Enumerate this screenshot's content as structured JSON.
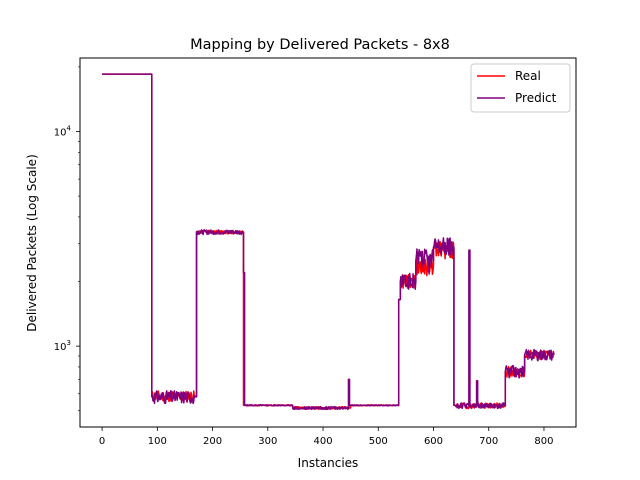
{
  "chart_data": {
    "type": "line",
    "title": "Mapping by Delivered Packets - 8x8",
    "xlabel": "Instancies",
    "ylabel": "Delivered Packets (Log Scale)",
    "yscale": "log",
    "xlim": [
      -40,
      858
    ],
    "ylim": [
      420,
      22000
    ],
    "x_ticks": [
      0,
      100,
      200,
      300,
      400,
      500,
      600,
      700,
      800
    ],
    "y_major_ticks": [
      {
        "value": 1000,
        "base": "10",
        "exp": "3"
      },
      {
        "value": 10000,
        "base": "10",
        "exp": "4"
      }
    ],
    "grid": false,
    "legend_position": "top-right",
    "series": [
      {
        "name": "Real",
        "color": "#ff0000",
        "segments": [
          {
            "x0": 0,
            "x1": 87,
            "level": 18500,
            "noise": 0,
            "seed": 1
          },
          {
            "x0": 87,
            "x1": 90,
            "level": 18500,
            "noise": 0,
            "seed": 1
          },
          {
            "x0": 90,
            "x1": 168,
            "level": 585,
            "noise": 0.06,
            "seed": 11
          },
          {
            "x0": 168,
            "x1": 171,
            "level": 585,
            "noise": 0,
            "seed": 1
          },
          {
            "x0": 171,
            "x1": 256,
            "level": 3400,
            "noise": 0.02,
            "seed": 12
          },
          {
            "x0": 256,
            "x1": 258,
            "level": 530,
            "noise": 0,
            "seed": 1
          },
          {
            "x0": 258,
            "x1": 345,
            "level": 530,
            "noise": 0.006,
            "seed": 13
          },
          {
            "x0": 345,
            "x1": 450,
            "level": 515,
            "noise": 0.015,
            "seed": 14
          },
          {
            "x0": 450,
            "x1": 537,
            "level": 530,
            "noise": 0.005,
            "seed": 15
          },
          {
            "x0": 537,
            "x1": 540,
            "level": 1650,
            "noise": 0,
            "seed": 1
          },
          {
            "x0": 540,
            "x1": 568,
            "level": 2000,
            "noise": 0.08,
            "seed": 16
          },
          {
            "x0": 568,
            "x1": 600,
            "level": 2400,
            "noise": 0.12,
            "seed": 17
          },
          {
            "x0": 600,
            "x1": 637,
            "level": 2800,
            "noise": 0.1,
            "seed": 18
          },
          {
            "x0": 637,
            "x1": 640,
            "level": 530,
            "noise": 0,
            "seed": 1
          },
          {
            "x0": 640,
            "x1": 730,
            "level": 528,
            "noise": 0.03,
            "seed": 19
          },
          {
            "x0": 730,
            "x1": 765,
            "level": 760,
            "noise": 0.06,
            "seed": 20
          },
          {
            "x0": 765,
            "x1": 818,
            "level": 910,
            "noise": 0.05,
            "seed": 21
          }
        ]
      },
      {
        "name": "Predict",
        "color": "#800080",
        "segments": [
          {
            "x0": 0,
            "x1": 87,
            "level": 18500,
            "noise": 0,
            "seed": 2
          },
          {
            "x0": 87,
            "x1": 90,
            "level": 18500,
            "noise": 0,
            "seed": 2
          },
          {
            "x0": 90,
            "x1": 168,
            "level": 580,
            "noise": 0.07,
            "seed": 31
          },
          {
            "x0": 168,
            "x1": 171,
            "level": 580,
            "noise": 0,
            "seed": 2
          },
          {
            "x0": 171,
            "x1": 256,
            "level": 3400,
            "noise": 0.025,
            "seed": 32
          },
          {
            "x0": 256,
            "x1": 258,
            "level": 2200,
            "noise": 0,
            "seed": 2
          },
          {
            "x0": 258,
            "x1": 345,
            "level": 530,
            "noise": 0.006,
            "seed": 33
          },
          {
            "x0": 345,
            "x1": 446,
            "level": 515,
            "noise": 0.015,
            "seed": 34
          },
          {
            "x0": 446,
            "x1": 448,
            "level": 700,
            "noise": 0,
            "seed": 2
          },
          {
            "x0": 448,
            "x1": 537,
            "level": 530,
            "noise": 0.005,
            "seed": 35
          },
          {
            "x0": 537,
            "x1": 540,
            "level": 1650,
            "noise": 0,
            "seed": 2
          },
          {
            "x0": 540,
            "x1": 568,
            "level": 2000,
            "noise": 0.09,
            "seed": 36
          },
          {
            "x0": 568,
            "x1": 600,
            "level": 2500,
            "noise": 0.14,
            "seed": 37
          },
          {
            "x0": 600,
            "x1": 637,
            "level": 2900,
            "noise": 0.11,
            "seed": 38
          },
          {
            "x0": 637,
            "x1": 640,
            "level": 530,
            "noise": 0,
            "seed": 2
          },
          {
            "x0": 640,
            "x1": 664,
            "level": 528,
            "noise": 0.03,
            "seed": 39
          },
          {
            "x0": 664,
            "x1": 666,
            "level": 2800,
            "noise": 0,
            "seed": 2
          },
          {
            "x0": 666,
            "x1": 678,
            "level": 528,
            "noise": 0.03,
            "seed": 40
          },
          {
            "x0": 678,
            "x1": 680,
            "level": 690,
            "noise": 0,
            "seed": 2
          },
          {
            "x0": 680,
            "x1": 730,
            "level": 528,
            "noise": 0.03,
            "seed": 41
          },
          {
            "x0": 730,
            "x1": 765,
            "level": 760,
            "noise": 0.07,
            "seed": 42
          },
          {
            "x0": 765,
            "x1": 818,
            "level": 910,
            "noise": 0.06,
            "seed": 43
          }
        ]
      }
    ]
  }
}
